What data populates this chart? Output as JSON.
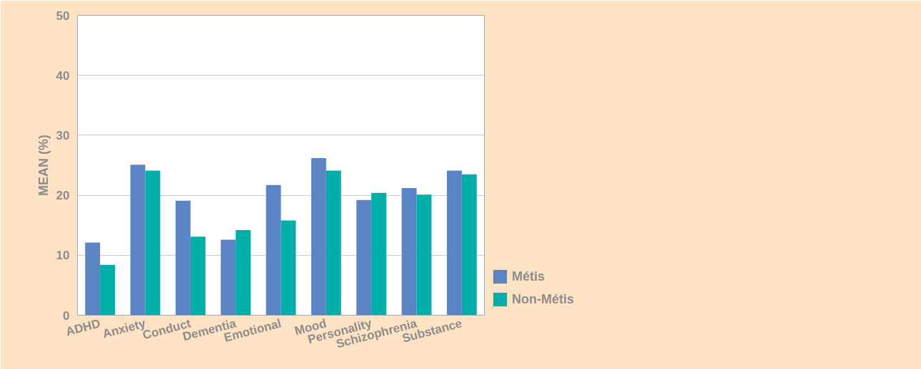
{
  "chart_data": {
    "type": "bar",
    "ylabel": "MEAN (%)",
    "categories": [
      "ADHD",
      "Anxiety",
      "Conduct",
      "Dementia",
      "Emotional",
      "Mood",
      "Personality",
      "Schizophrenia",
      "Substance"
    ],
    "series": [
      {
        "name": "Métis",
        "color": "#5b84c4",
        "values": [
          12.1,
          25.1,
          19.1,
          12.6,
          21.7,
          26.2,
          19.2,
          21.2,
          24.1
        ]
      },
      {
        "name": "Non-Métis",
        "color": "#00aeaa",
        "values": [
          8.4,
          24.1,
          13.1,
          14.2,
          15.8,
          24.1,
          20.4,
          20.1,
          23.5
        ]
      }
    ],
    "ylim": [
      0,
      50
    ],
    "yticks": [
      0,
      10,
      20,
      30,
      40,
      50
    ],
    "grid": "y",
    "legend": "bottom right"
  }
}
